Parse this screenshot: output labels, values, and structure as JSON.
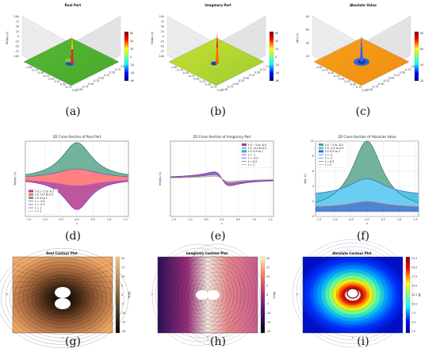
{
  "captions": [
    "(a)",
    "(b)",
    "(c)",
    "(d)",
    "(e)",
    "(f)",
    "(g)",
    "(h)",
    "(i)"
  ],
  "chart_data": [
    {
      "panel": "a",
      "type": "surface",
      "title": "Real Part",
      "zlabel": "Re(ψ(x,y))",
      "colormap": "jet",
      "colorbar_ticks": [
        "60",
        "40",
        "20",
        "0",
        "-20",
        "-40",
        "-60"
      ],
      "axis_ticks": [
        "-1.00",
        "-0.75",
        "-0.50",
        "-0.25",
        "0.00",
        "0.25",
        "0.50",
        "0.75",
        "1.00"
      ],
      "z_ticks": [
        "100",
        "75",
        "50",
        "25",
        "0",
        "-25",
        "-50",
        "-75",
        "-100"
      ]
    },
    {
      "panel": "b",
      "type": "surface",
      "title": "Imaginary Part",
      "zlabel": "Im(ψ(x,y))",
      "colormap": "jet",
      "colorbar_ticks": [
        "60",
        "40",
        "20",
        "0",
        "-20",
        "-40",
        "-60"
      ],
      "axis_ticks": [
        "-1.00",
        "-0.75",
        "-0.50",
        "-0.25",
        "0.00",
        "0.25",
        "0.50",
        "0.75",
        "1.00"
      ],
      "z_ticks": [
        "100",
        "75",
        "50",
        "25",
        "0",
        "-25",
        "-50",
        "-75",
        "-100"
      ]
    },
    {
      "panel": "c",
      "type": "surface",
      "title": "Absolute Value",
      "zlabel": "|ψ(x,y)|",
      "colormap": "jet",
      "colorbar_ticks": [
        "80",
        "60",
        "40",
        "20"
      ],
      "axis_ticks": [
        "-1.00",
        "-0.75",
        "-0.50",
        "-0.25",
        "0.00",
        "0.25",
        "0.50",
        "0.75",
        "1.00"
      ],
      "z_ticks": [
        "80",
        "60",
        "40",
        "20"
      ]
    },
    {
      "panel": "d",
      "type": "area",
      "title": "2D Cross-Section of Real Part",
      "xlabel": "x",
      "ylabel": "Re(ψ(x, t))",
      "xlim": [
        -1.6,
        1.6
      ],
      "ylim": [
        -10,
        10
      ],
      "x_ticks": [
        -1.5,
        -1.0,
        -0.5,
        0.0,
        0.5,
        1.0,
        1.5
      ],
      "grid": true,
      "legend_position": "lower-left",
      "fills": [
        {
          "name": "t ∈ [−1 to -0.1",
          "color": "#b03a8e"
        },
        {
          "name": "t ∈ -0.5 to 0.5",
          "color": "#ff6b6b"
        },
        {
          "name": "t ∈ 0 to 1",
          "color": "#5aa58a"
        }
      ],
      "series": [
        {
          "name": "t = -0.5",
          "color": "#7a3dbd",
          "peak": 8.0,
          "sign": -1
        },
        {
          "name": "t = -0.7",
          "color": "#3f5fd0",
          "peak": 7.0,
          "sign": -1
        },
        {
          "name": "t = 1",
          "color": "#d65a5a",
          "peak": 3.0,
          "sign": 1
        },
        {
          "name": "t = 2",
          "color": "#ff9966",
          "peak": 9.6,
          "sign": 1
        }
      ]
    },
    {
      "panel": "e",
      "type": "area",
      "title": "2D Cross-Section of Imaginary Part",
      "xlabel": "x",
      "ylabel": "Im(ψ(x, t))",
      "xlim": [
        -1.6,
        1.6
      ],
      "ylim": [
        -10,
        10
      ],
      "x_ticks": [
        -1.5,
        -1.0,
        -0.5,
        0.0,
        0.5,
        1.0,
        1.5
      ],
      "grid": true,
      "legend_position": "upper-right",
      "fills": [
        {
          "name": "t ∈ −1 to -0.5",
          "color": "#b03a8e"
        },
        {
          "name": "t ∈ -0.5 to 0.5",
          "color": "#6fe0ea"
        },
        {
          "name": "t ∈ 0.5 to 1",
          "color": "#3aa3c7"
        }
      ],
      "series": [
        {
          "name": "t = -1",
          "color": "#7a3dbd"
        },
        {
          "name": "t = -0.5",
          "color": "#3f5fd0"
        },
        {
          "name": "t = 0.5",
          "color": "#2aa0c0"
        },
        {
          "name": "t = 1",
          "color": "#ff8a4c"
        }
      ]
    },
    {
      "panel": "f",
      "type": "area",
      "title": "2D Cross-Section of Absolute Value",
      "xlabel": "x",
      "ylabel": "|ψ(x, t)|",
      "xlim": [
        -1.6,
        1.6
      ],
      "ylim": [
        0,
        10
      ],
      "x_ticks": [
        -1.5,
        -1.0,
        -0.5,
        0.0,
        0.5,
        1.0,
        1.5
      ],
      "y_ticks": [
        0,
        2,
        4,
        6,
        8,
        10
      ],
      "grid": true,
      "legend_position": "upper-left",
      "fills": [
        {
          "name": "t ∈ −1 to -0.5",
          "color": "#5aa58a"
        },
        {
          "name": "t ∈ -0.5 to 0.5",
          "color": "#4fc6f0"
        },
        {
          "name": "t ∈ 0.5 to 2",
          "color": "#2f6fc9"
        }
      ],
      "series": [
        {
          "name": "t = -2",
          "color": "#3f5fd0",
          "peak": 5.0
        },
        {
          "name": "t = -1",
          "color": "#2b9fd4",
          "peak": 2.0
        },
        {
          "name": "t = 0.5",
          "color": "#2aa0c0",
          "peak": 3.0
        },
        {
          "name": "t = 2",
          "color": "#ff8a4c",
          "peak": 10.0
        }
      ]
    },
    {
      "panel": "g",
      "type": "contour",
      "title": "Real Contour Plot",
      "xlabel": "x",
      "ylabel": "y",
      "colormap": "copper",
      "colorbar_label": "Re(ψ)",
      "colorbar_ticks": [
        "20",
        "15",
        "10",
        "5",
        "0",
        "-5",
        "-10",
        "-15",
        "-20"
      ]
    },
    {
      "panel": "h",
      "type": "contour",
      "title": "Imaginary Contour Plot",
      "xlabel": "x",
      "ylabel": "y",
      "colormap": "magma",
      "colorbar_label": "Im(ψ)",
      "colorbar_ticks": [
        "20",
        "15",
        "10",
        "5",
        "0",
        "-5",
        "-10",
        "-15",
        "-20"
      ]
    },
    {
      "panel": "i",
      "type": "contour",
      "title": "Absolute Contour Plot",
      "xlabel": "x",
      "ylabel": "y",
      "colormap": "jet",
      "colorbar_label": "|ψ|",
      "colorbar_ticks": [
        "22.5",
        "20.0",
        "17.5",
        "15.0",
        "12.5",
        "10.0",
        "7.5",
        "5.0",
        "2.5"
      ]
    }
  ]
}
